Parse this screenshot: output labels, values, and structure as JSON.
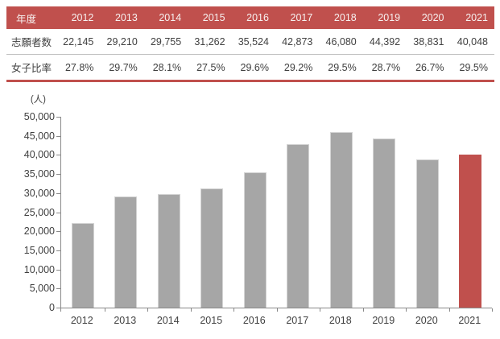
{
  "table": {
    "header": {
      "label": "年度",
      "years": [
        "2012",
        "2013",
        "2014",
        "2015",
        "2016",
        "2017",
        "2018",
        "2019",
        "2020",
        "2021"
      ]
    },
    "rows": [
      {
        "label": "志願者数",
        "values": [
          "22,145",
          "29,210",
          "29,755",
          "31,262",
          "35,524",
          "42,873",
          "46,080",
          "44,392",
          "38,831",
          "40,048"
        ]
      },
      {
        "label": "女子比率",
        "values": [
          "27.8%",
          "29.7%",
          "28.1%",
          "27.5%",
          "29.6%",
          "29.2%",
          "29.5%",
          "28.7%",
          "26.7%",
          "29.5%"
        ]
      }
    ],
    "colors": {
      "header_bg": "#C0504D",
      "header_text": "#F7F1F0",
      "body_text": "#404040",
      "row_divider": "#BFBFBF",
      "bottom_border": "#C0504D"
    }
  },
  "chart_data": {
    "type": "bar",
    "categories": [
      "2012",
      "2013",
      "2014",
      "2015",
      "2016",
      "2017",
      "2018",
      "2019",
      "2020",
      "2021"
    ],
    "values": [
      22145,
      29210,
      29755,
      31262,
      35524,
      42873,
      46080,
      44392,
      38831,
      40048
    ],
    "title": "",
    "xlabel": "",
    "ylabel": "(人)",
    "ylim": [
      0,
      50000
    ],
    "ytick_step": 5000,
    "ytick_labels": [
      "50,000",
      "45,000",
      "40,000",
      "35,000",
      "30,000",
      "25,000",
      "20,000",
      "15,000",
      "10,000",
      "5,000",
      "0"
    ],
    "grid": false,
    "legend": false,
    "bar_color": "#A6A6A6",
    "highlight": {
      "index": 9,
      "color": "#C0504D"
    },
    "axis_color": "#898989",
    "label_color": "#404040"
  }
}
